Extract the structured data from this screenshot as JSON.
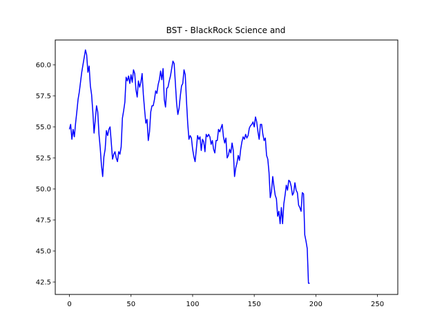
{
  "chart_data": {
    "type": "line",
    "title": "BST - BlackRock Science and",
    "xlabel": "",
    "ylabel": "",
    "xlim": [
      -11.5,
      266.5
    ],
    "ylim": [
      41.5,
      62.0
    ],
    "xticks": [
      0,
      50,
      100,
      150,
      200,
      250
    ],
    "yticks": [
      42.5,
      45.0,
      47.5,
      50.0,
      52.5,
      55.0,
      57.5,
      60.0
    ],
    "grid": false,
    "series": [
      {
        "color": "#0000ff",
        "points": [
          [
            0,
            54.8
          ],
          [
            1,
            55.2
          ],
          [
            2,
            54.0
          ],
          [
            3,
            54.8
          ],
          [
            4,
            54.2
          ],
          [
            5,
            55.3
          ],
          [
            6,
            56.2
          ],
          [
            7,
            57.2
          ],
          [
            8,
            57.8
          ],
          [
            9,
            58.6
          ],
          [
            10,
            59.4
          ],
          [
            11,
            60.0
          ],
          [
            12,
            60.6
          ],
          [
            13,
            61.2
          ],
          [
            14,
            60.8
          ],
          [
            15,
            59.4
          ],
          [
            16,
            59.9
          ],
          [
            17,
            58.3
          ],
          [
            18,
            57.6
          ],
          [
            19,
            56.2
          ],
          [
            20,
            54.5
          ],
          [
            21,
            55.6
          ],
          [
            22,
            56.7
          ],
          [
            23,
            56.2
          ],
          [
            24,
            54.4
          ],
          [
            25,
            53.3
          ],
          [
            26,
            51.9
          ],
          [
            27,
            51.0
          ],
          [
            28,
            52.6
          ],
          [
            29,
            53.2
          ],
          [
            30,
            54.7
          ],
          [
            31,
            54.3
          ],
          [
            32,
            54.8
          ],
          [
            33,
            55.0
          ],
          [
            34,
            53.7
          ],
          [
            35,
            52.4
          ],
          [
            36,
            52.8
          ],
          [
            37,
            53.0
          ],
          [
            38,
            52.5
          ],
          [
            39,
            52.2
          ],
          [
            40,
            53.0
          ],
          [
            41,
            52.8
          ],
          [
            42,
            53.4
          ],
          [
            43,
            55.7
          ],
          [
            44,
            56.3
          ],
          [
            45,
            57.0
          ],
          [
            46,
            59.0
          ],
          [
            47,
            58.7
          ],
          [
            48,
            59.1
          ],
          [
            49,
            58.5
          ],
          [
            50,
            59.2
          ],
          [
            51,
            58.6
          ],
          [
            52,
            59.6
          ],
          [
            53,
            59.3
          ],
          [
            54,
            58.0
          ],
          [
            55,
            57.4
          ],
          [
            56,
            58.7
          ],
          [
            57,
            58.2
          ],
          [
            58,
            58.6
          ],
          [
            59,
            59.3
          ],
          [
            60,
            57.6
          ],
          [
            61,
            56.4
          ],
          [
            62,
            55.3
          ],
          [
            63,
            55.6
          ],
          [
            64,
            53.9
          ],
          [
            65,
            54.6
          ],
          [
            66,
            56.2
          ],
          [
            67,
            56.7
          ],
          [
            68,
            56.7
          ],
          [
            69,
            57.2
          ],
          [
            70,
            57.9
          ],
          [
            71,
            57.7
          ],
          [
            72,
            58.4
          ],
          [
            73,
            58.8
          ],
          [
            74,
            59.5
          ],
          [
            75,
            58.8
          ],
          [
            76,
            59.7
          ],
          [
            77,
            57.2
          ],
          [
            78,
            56.6
          ],
          [
            79,
            58.1
          ],
          [
            80,
            58.2
          ],
          [
            81,
            58.7
          ],
          [
            82,
            59.1
          ],
          [
            83,
            59.7
          ],
          [
            84,
            60.3
          ],
          [
            85,
            60.1
          ],
          [
            86,
            58.5
          ],
          [
            87,
            56.9
          ],
          [
            88,
            56.0
          ],
          [
            89,
            56.5
          ],
          [
            90,
            57.5
          ],
          [
            91,
            58.3
          ],
          [
            92,
            58.5
          ],
          [
            93,
            59.6
          ],
          [
            94,
            59.2
          ],
          [
            95,
            57.1
          ],
          [
            96,
            55.3
          ],
          [
            97,
            54.0
          ],
          [
            98,
            54.3
          ],
          [
            99,
            54.1
          ],
          [
            100,
            53.2
          ],
          [
            101,
            52.6
          ],
          [
            102,
            52.2
          ],
          [
            103,
            53.2
          ],
          [
            104,
            54.3
          ],
          [
            105,
            54.0
          ],
          [
            106,
            54.2
          ],
          [
            107,
            53.1
          ],
          [
            108,
            54.0
          ],
          [
            109,
            53.8
          ],
          [
            110,
            53.0
          ],
          [
            111,
            54.4
          ],
          [
            112,
            54.2
          ],
          [
            113,
            54.4
          ],
          [
            114,
            54.2
          ],
          [
            115,
            53.6
          ],
          [
            116,
            53.9
          ],
          [
            117,
            53.2
          ],
          [
            118,
            52.9
          ],
          [
            119,
            53.9
          ],
          [
            120,
            53.9
          ],
          [
            121,
            54.8
          ],
          [
            122,
            54.6
          ],
          [
            123,
            54.9
          ],
          [
            124,
            55.2
          ],
          [
            125,
            54.2
          ],
          [
            126,
            53.7
          ],
          [
            127,
            54.1
          ],
          [
            128,
            52.5
          ],
          [
            129,
            52.7
          ],
          [
            130,
            53.2
          ],
          [
            131,
            52.9
          ],
          [
            132,
            53.7
          ],
          [
            133,
            53.1
          ],
          [
            134,
            51.0
          ],
          [
            135,
            51.7
          ],
          [
            136,
            52.1
          ],
          [
            137,
            52.7
          ],
          [
            138,
            52.3
          ],
          [
            139,
            53.2
          ],
          [
            140,
            53.8
          ],
          [
            141,
            54.2
          ],
          [
            142,
            54.0
          ],
          [
            143,
            54.4
          ],
          [
            144,
            54.1
          ],
          [
            145,
            54.3
          ],
          [
            146,
            54.9
          ],
          [
            147,
            55.1
          ],
          [
            148,
            55.2
          ],
          [
            149,
            55.4
          ],
          [
            150,
            55.0
          ],
          [
            151,
            55.8
          ],
          [
            152,
            55.4
          ],
          [
            153,
            54.6
          ],
          [
            154,
            54.0
          ],
          [
            155,
            55.2
          ],
          [
            156,
            55.2
          ],
          [
            157,
            54.4
          ],
          [
            158,
            53.9
          ],
          [
            159,
            54.1
          ],
          [
            160,
            52.7
          ],
          [
            161,
            52.4
          ],
          [
            162,
            51.3
          ],
          [
            163,
            49.3
          ],
          [
            164,
            49.8
          ],
          [
            165,
            51.0
          ],
          [
            166,
            50.2
          ],
          [
            167,
            49.5
          ],
          [
            168,
            49.2
          ],
          [
            169,
            47.8
          ],
          [
            170,
            48.2
          ],
          [
            171,
            47.2
          ],
          [
            172,
            48.5
          ],
          [
            173,
            47.2
          ],
          [
            174,
            48.8
          ],
          [
            175,
            49.5
          ],
          [
            176,
            50.3
          ],
          [
            177,
            49.9
          ],
          [
            178,
            50.7
          ],
          [
            179,
            50.6
          ],
          [
            180,
            50.2
          ],
          [
            181,
            49.5
          ],
          [
            182,
            49.7
          ],
          [
            183,
            50.5
          ],
          [
            184,
            49.9
          ],
          [
            185,
            49.7
          ],
          [
            186,
            48.7
          ],
          [
            187,
            48.5
          ],
          [
            188,
            48.2
          ],
          [
            189,
            49.7
          ],
          [
            190,
            49.6
          ],
          [
            191,
            46.3
          ],
          [
            192,
            45.8
          ],
          [
            193,
            45.2
          ],
          [
            194,
            42.4
          ],
          [
            195,
            42.4
          ]
        ],
        "x_scale_note": ""
      }
    ]
  }
}
